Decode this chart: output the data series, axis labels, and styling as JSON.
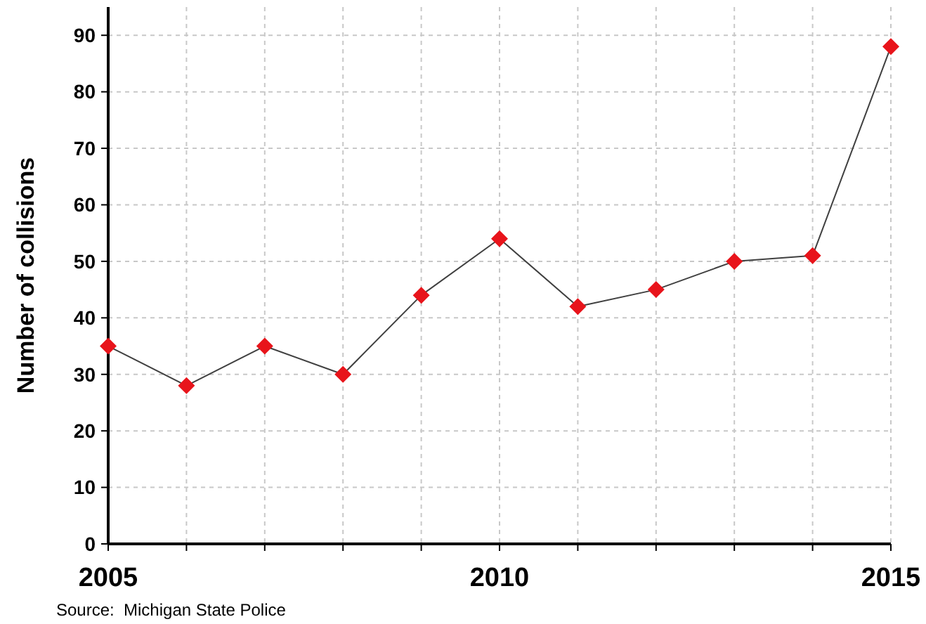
{
  "chart_data": {
    "type": "line",
    "ylabel": "Number of collisions",
    "annotations": [
      "Source:  Michigan State Police"
    ],
    "x": [
      2005,
      2006,
      2007,
      2008,
      2009,
      2010,
      2011,
      2012,
      2013,
      2014,
      2015
    ],
    "series": [
      {
        "color": "#e8141b",
        "values": [
          35,
          28,
          35,
          30,
          44,
          54,
          42,
          45,
          50,
          51,
          88
        ]
      }
    ],
    "xlim": [
      2005,
      2015
    ],
    "xticks": [
      2005,
      {
        "value": 2006,
        "label": null
      },
      {
        "value": 2007,
        "label": null
      },
      {
        "value": 2008,
        "label": null
      },
      {
        "value": 2009,
        "label": null
      },
      2010,
      {
        "value": 2011,
        "label": null
      },
      {
        "value": 2012,
        "label": null
      },
      {
        "value": 2013,
        "label": null
      },
      {
        "value": 2014,
        "label": null
      },
      2015
    ],
    "ylim": [
      0,
      95
    ],
    "yticks": [
      0,
      10,
      20,
      30,
      40,
      50,
      60,
      70,
      80,
      90
    ],
    "grid": true,
    "marker": "diamond",
    "line_style": "solid"
  }
}
